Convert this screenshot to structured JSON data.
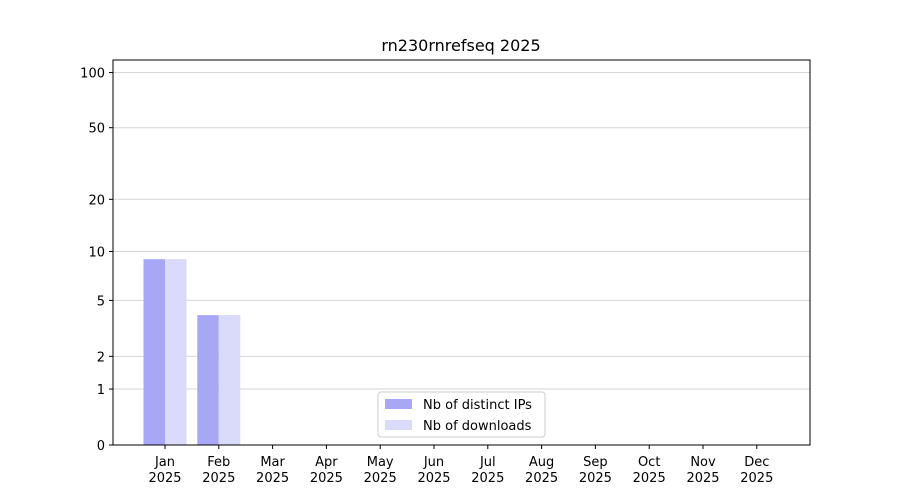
{
  "chart_data": {
    "type": "bar",
    "title": "rn230rnrefseq 2025",
    "categories": [
      "Jan 2025",
      "Feb 2025",
      "Mar 2025",
      "Apr 2025",
      "May 2025",
      "Jun 2025",
      "Jul 2025",
      "Aug 2025",
      "Sep 2025",
      "Oct 2025",
      "Nov 2025",
      "Dec 2025"
    ],
    "series": [
      {
        "name": "Nb of distinct IPs",
        "color": "#a7a7f5",
        "values": [
          9,
          4,
          0,
          0,
          0,
          0,
          0,
          0,
          0,
          0,
          0,
          0
        ]
      },
      {
        "name": "Nb of downloads",
        "color": "#dadafb",
        "values": [
          9,
          4,
          0,
          0,
          0,
          0,
          0,
          0,
          0,
          0,
          0,
          0
        ]
      }
    ],
    "ylim": [
      0,
      117
    ],
    "yticks": [
      0,
      1,
      2,
      5,
      10,
      20,
      50,
      100
    ],
    "yscale": "log1p",
    "grid": true,
    "legend": "lower center"
  }
}
